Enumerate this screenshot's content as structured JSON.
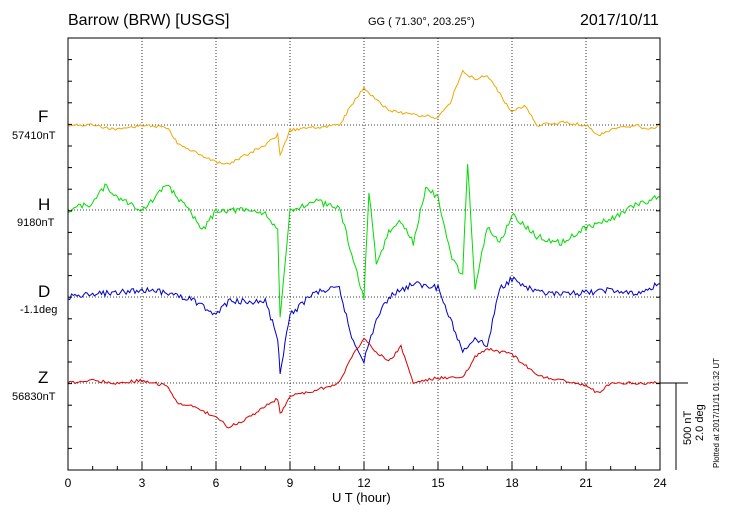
{
  "header": {
    "station": "Barrow (BRW)  [USGS]",
    "coords": "GG ( 71.30°, 203.25°)",
    "date": "2017/10/11"
  },
  "channels": [
    {
      "key": "F",
      "label": "F",
      "baseline": "57410nT",
      "color": "#f0a800"
    },
    {
      "key": "H",
      "label": "H",
      "baseline": "9180nT",
      "color": "#00dd00"
    },
    {
      "key": "D",
      "label": "D",
      "baseline": "-1.1deg",
      "color": "#0000cc"
    },
    {
      "key": "Z",
      "label": "Z",
      "baseline": "56830nT",
      "color": "#dd0000"
    }
  ],
  "scale": {
    "nt": "500 nT",
    "deg": "2.0 deg"
  },
  "plotted": "Plotted at 2017/11/11 01:32 UT",
  "chart_data": {
    "type": "line",
    "title": "Barrow (BRW)  [USGS]",
    "xlabel": "U T (hour)",
    "xlim": [
      0,
      24
    ],
    "xticks": [
      "0",
      "3",
      "6",
      "9",
      "12",
      "15",
      "18",
      "21",
      "24"
    ],
    "grid": true,
    "series": [
      {
        "name": "F",
        "x": [
          0,
          1,
          2,
          3,
          4,
          4.5,
          5,
          6,
          6.5,
          7,
          8,
          8.5,
          8.6,
          9,
          10,
          11,
          11.5,
          12,
          12.5,
          13,
          14,
          15,
          15.5,
          16,
          16.5,
          17,
          18,
          18.5,
          19,
          20,
          21,
          21.5,
          22,
          23,
          23.5,
          24
        ],
        "values": [
          0,
          0,
          -20,
          0,
          -10,
          -80,
          -100,
          -150,
          -160,
          -130,
          -80,
          -40,
          -120,
          -20,
          -10,
          0,
          80,
          150,
          100,
          60,
          40,
          30,
          90,
          220,
          180,
          200,
          50,
          80,
          0,
          10,
          0,
          -40,
          -20,
          0,
          -20,
          0
        ]
      },
      {
        "name": "H",
        "x": [
          0,
          1,
          1.5,
          2,
          3,
          3.5,
          4,
          4.5,
          5,
          5.5,
          6,
          7,
          8,
          8.5,
          8.6,
          9,
          10,
          11,
          11.5,
          12,
          12.2,
          12.5,
          13,
          13.5,
          14,
          14.5,
          15,
          15.5,
          16,
          16.2,
          16.5,
          17,
          17.5,
          18,
          18.5,
          19,
          20,
          21,
          22,
          23,
          24
        ],
        "values": [
          0,
          30,
          110,
          60,
          0,
          50,
          120,
          50,
          -20,
          -90,
          0,
          0,
          -10,
          -100,
          -500,
          0,
          40,
          10,
          -200,
          -400,
          80,
          -250,
          -100,
          -50,
          -150,
          100,
          60,
          -200,
          -300,
          220,
          -350,
          -80,
          -150,
          -20,
          -70,
          -120,
          -150,
          -80,
          -40,
          20,
          60
        ]
      },
      {
        "name": "D",
        "x": [
          0,
          1,
          2,
          3,
          4,
          5,
          6,
          6.5,
          7,
          8,
          8.5,
          8.6,
          9,
          10,
          11,
          11.5,
          12,
          12.5,
          13,
          14,
          15,
          15.5,
          16,
          16.5,
          17,
          17.5,
          18,
          19,
          20,
          21,
          22,
          23,
          24
        ],
        "values": [
          0,
          0.05,
          0.1,
          0.15,
          0.1,
          -0.05,
          -0.4,
          -0.1,
          -0.1,
          -0.1,
          -0.9,
          -1.7,
          -0.4,
          0.1,
          0.2,
          -0.9,
          -1.4,
          -0.5,
          0,
          0.3,
          0.2,
          -0.5,
          -1.2,
          -0.9,
          -1.1,
          0.2,
          0.4,
          0.1,
          0.05,
          0.1,
          0.15,
          0.05,
          0.3
        ]
      },
      {
        "name": "Z",
        "x": [
          0,
          1,
          2,
          3,
          4,
          4.5,
          5,
          6,
          6.5,
          7,
          8,
          8.5,
          8.6,
          9,
          10,
          11,
          11.5,
          12,
          12.5,
          13,
          13.5,
          14,
          15,
          16,
          16.5,
          17,
          18,
          19,
          20,
          21,
          21.5,
          22,
          23,
          24
        ],
        "values": [
          0,
          10,
          0,
          10,
          -10,
          -80,
          -90,
          -130,
          -170,
          -150,
          -90,
          -60,
          -120,
          -50,
          -30,
          0,
          100,
          170,
          120,
          80,
          140,
          0,
          20,
          20,
          100,
          130,
          110,
          30,
          10,
          -10,
          -40,
          0,
          0,
          0
        ]
      }
    ]
  }
}
